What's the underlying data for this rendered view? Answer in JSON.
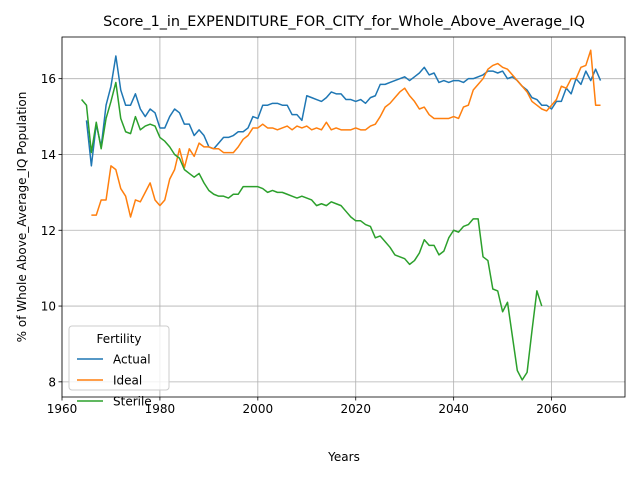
{
  "chart_data": {
    "type": "line",
    "title": "Score_1_in_EXPENDITURE_FOR_CITY_for_Whole_Above_Average_IQ",
    "xlabel": "Years",
    "ylabel": "% of Whole Above_Average_IQ Population",
    "xlim": [
      1960,
      2075
    ],
    "ylim": [
      7.6,
      17.1
    ],
    "x_ticks": [
      1960,
      1980,
      2000,
      2020,
      2040,
      2060
    ],
    "y_ticks": [
      8,
      10,
      12,
      14,
      16
    ],
    "grid": true,
    "legend": {
      "title": "Fertility",
      "placement": "bottom-left"
    },
    "series": [
      {
        "name": "Actual",
        "color": "#1f77b4",
        "points": [
          [
            1965,
            14.9
          ],
          [
            1966,
            13.7
          ],
          [
            1967,
            14.8
          ],
          [
            1968,
            14.2
          ],
          [
            1969,
            15.3
          ],
          [
            1970,
            15.8
          ],
          [
            1971,
            16.6
          ],
          [
            1972,
            15.7
          ],
          [
            1973,
            15.3
          ],
          [
            1974,
            15.3
          ],
          [
            1975,
            15.6
          ],
          [
            1976,
            15.2
          ],
          [
            1977,
            15.0
          ],
          [
            1978,
            15.2
          ],
          [
            1979,
            15.1
          ],
          [
            1980,
            14.7
          ],
          [
            1981,
            14.7
          ],
          [
            1982,
            15.0
          ],
          [
            1983,
            15.2
          ],
          [
            1984,
            15.1
          ],
          [
            1985,
            14.8
          ],
          [
            1986,
            14.8
          ],
          [
            1987,
            14.5
          ],
          [
            1988,
            14.65
          ],
          [
            1989,
            14.5
          ],
          [
            1990,
            14.2
          ],
          [
            1991,
            14.15
          ],
          [
            1992,
            14.3
          ],
          [
            1993,
            14.45
          ],
          [
            1994,
            14.45
          ],
          [
            1995,
            14.5
          ],
          [
            1996,
            14.6
          ],
          [
            1997,
            14.6
          ],
          [
            1998,
            14.7
          ],
          [
            1999,
            15.0
          ],
          [
            2000,
            14.95
          ],
          [
            2001,
            15.3
          ],
          [
            2002,
            15.3
          ],
          [
            2003,
            15.35
          ],
          [
            2004,
            15.35
          ],
          [
            2005,
            15.3
          ],
          [
            2006,
            15.3
          ],
          [
            2007,
            15.05
          ],
          [
            2008,
            15.05
          ],
          [
            2009,
            14.9
          ],
          [
            2010,
            15.55
          ],
          [
            2011,
            15.5
          ],
          [
            2012,
            15.45
          ],
          [
            2013,
            15.4
          ],
          [
            2014,
            15.5
          ],
          [
            2015,
            15.65
          ],
          [
            2016,
            15.6
          ],
          [
            2017,
            15.6
          ],
          [
            2018,
            15.45
          ],
          [
            2019,
            15.45
          ],
          [
            2020,
            15.4
          ],
          [
            2021,
            15.45
          ],
          [
            2022,
            15.35
          ],
          [
            2023,
            15.5
          ],
          [
            2024,
            15.55
          ],
          [
            2025,
            15.85
          ],
          [
            2026,
            15.85
          ],
          [
            2027,
            15.9
          ],
          [
            2028,
            15.95
          ],
          [
            2029,
            16.0
          ],
          [
            2030,
            16.05
          ],
          [
            2031,
            15.95
          ],
          [
            2032,
            16.05
          ],
          [
            2033,
            16.15
          ],
          [
            2034,
            16.3
          ],
          [
            2035,
            16.1
          ],
          [
            2036,
            16.15
          ],
          [
            2037,
            15.9
          ],
          [
            2038,
            15.95
          ],
          [
            2039,
            15.9
          ],
          [
            2040,
            15.95
          ],
          [
            2041,
            15.95
          ],
          [
            2042,
            15.9
          ],
          [
            2043,
            16.0
          ],
          [
            2044,
            16.0
          ],
          [
            2045,
            16.05
          ],
          [
            2046,
            16.1
          ],
          [
            2047,
            16.2
          ],
          [
            2048,
            16.2
          ],
          [
            2049,
            16.15
          ],
          [
            2050,
            16.2
          ],
          [
            2051,
            16.0
          ],
          [
            2052,
            16.05
          ],
          [
            2053,
            15.95
          ],
          [
            2054,
            15.8
          ],
          [
            2055,
            15.7
          ],
          [
            2056,
            15.5
          ],
          [
            2057,
            15.45
          ],
          [
            2058,
            15.3
          ],
          [
            2059,
            15.3
          ],
          [
            2060,
            15.2
          ],
          [
            2061,
            15.4
          ],
          [
            2062,
            15.4
          ],
          [
            2063,
            15.75
          ],
          [
            2064,
            15.6
          ],
          [
            2065,
            16.0
          ],
          [
            2066,
            15.85
          ],
          [
            2067,
            16.2
          ],
          [
            2068,
            15.95
          ],
          [
            2069,
            16.25
          ],
          [
            2070,
            15.95
          ]
        ]
      },
      {
        "name": "Ideal",
        "color": "#ff7f0e",
        "points": [
          [
            1966,
            12.4
          ],
          [
            1967,
            12.4
          ],
          [
            1968,
            12.8
          ],
          [
            1969,
            12.8
          ],
          [
            1970,
            13.7
          ],
          [
            1971,
            13.6
          ],
          [
            1972,
            13.1
          ],
          [
            1973,
            12.9
          ],
          [
            1974,
            12.35
          ],
          [
            1975,
            12.8
          ],
          [
            1976,
            12.75
          ],
          [
            1977,
            13.0
          ],
          [
            1978,
            13.25
          ],
          [
            1979,
            12.8
          ],
          [
            1980,
            12.65
          ],
          [
            1981,
            12.8
          ],
          [
            1982,
            13.35
          ],
          [
            1983,
            13.6
          ],
          [
            1984,
            14.15
          ],
          [
            1985,
            13.65
          ],
          [
            1986,
            14.15
          ],
          [
            1987,
            13.95
          ],
          [
            1988,
            14.3
          ],
          [
            1989,
            14.2
          ],
          [
            1990,
            14.2
          ],
          [
            1991,
            14.15
          ],
          [
            1992,
            14.15
          ],
          [
            1993,
            14.05
          ],
          [
            1994,
            14.05
          ],
          [
            1995,
            14.05
          ],
          [
            1996,
            14.2
          ],
          [
            1997,
            14.4
          ],
          [
            1998,
            14.5
          ],
          [
            1999,
            14.7
          ],
          [
            2000,
            14.7
          ],
          [
            2001,
            14.8
          ],
          [
            2002,
            14.7
          ],
          [
            2003,
            14.7
          ],
          [
            2004,
            14.65
          ],
          [
            2005,
            14.7
          ],
          [
            2006,
            14.75
          ],
          [
            2007,
            14.65
          ],
          [
            2008,
            14.75
          ],
          [
            2009,
            14.7
          ],
          [
            2010,
            14.75
          ],
          [
            2011,
            14.65
          ],
          [
            2012,
            14.7
          ],
          [
            2013,
            14.65
          ],
          [
            2014,
            14.85
          ],
          [
            2015,
            14.65
          ],
          [
            2016,
            14.7
          ],
          [
            2017,
            14.65
          ],
          [
            2018,
            14.65
          ],
          [
            2019,
            14.65
          ],
          [
            2020,
            14.7
          ],
          [
            2021,
            14.65
          ],
          [
            2022,
            14.65
          ],
          [
            2023,
            14.75
          ],
          [
            2024,
            14.8
          ],
          [
            2025,
            15.0
          ],
          [
            2026,
            15.25
          ],
          [
            2027,
            15.35
          ],
          [
            2028,
            15.5
          ],
          [
            2029,
            15.65
          ],
          [
            2030,
            15.75
          ],
          [
            2031,
            15.55
          ],
          [
            2032,
            15.4
          ],
          [
            2033,
            15.2
          ],
          [
            2034,
            15.25
          ],
          [
            2035,
            15.05
          ],
          [
            2036,
            14.95
          ],
          [
            2037,
            14.95
          ],
          [
            2038,
            14.95
          ],
          [
            2039,
            14.95
          ],
          [
            2040,
            15.0
          ],
          [
            2041,
            14.95
          ],
          [
            2042,
            15.25
          ],
          [
            2043,
            15.3
          ],
          [
            2044,
            15.7
          ],
          [
            2045,
            15.85
          ],
          [
            2046,
            16.0
          ],
          [
            2047,
            16.25
          ],
          [
            2048,
            16.35
          ],
          [
            2049,
            16.4
          ],
          [
            2050,
            16.3
          ],
          [
            2051,
            16.25
          ],
          [
            2052,
            16.1
          ],
          [
            2053,
            15.95
          ],
          [
            2054,
            15.8
          ],
          [
            2055,
            15.65
          ],
          [
            2056,
            15.4
          ],
          [
            2057,
            15.3
          ],
          [
            2058,
            15.2
          ],
          [
            2059,
            15.15
          ],
          [
            2060,
            15.3
          ],
          [
            2061,
            15.45
          ],
          [
            2062,
            15.8
          ],
          [
            2063,
            15.75
          ],
          [
            2064,
            16.0
          ],
          [
            2065,
            16.0
          ],
          [
            2066,
            16.3
          ],
          [
            2067,
            16.35
          ],
          [
            2068,
            16.75
          ],
          [
            2069,
            15.3
          ],
          [
            2070,
            15.3
          ]
        ]
      },
      {
        "name": "Sterile",
        "color": "#2ca02c",
        "points": [
          [
            1964,
            15.45
          ],
          [
            1965,
            15.3
          ],
          [
            1966,
            14.05
          ],
          [
            1967,
            14.85
          ],
          [
            1968,
            14.15
          ],
          [
            1969,
            14.95
          ],
          [
            1970,
            15.4
          ],
          [
            1971,
            15.9
          ],
          [
            1972,
            14.95
          ],
          [
            1973,
            14.6
          ],
          [
            1974,
            14.55
          ],
          [
            1975,
            15.0
          ],
          [
            1976,
            14.65
          ],
          [
            1977,
            14.75
          ],
          [
            1978,
            14.8
          ],
          [
            1979,
            14.75
          ],
          [
            1980,
            14.45
          ],
          [
            1981,
            14.35
          ],
          [
            1982,
            14.2
          ],
          [
            1983,
            14.0
          ],
          [
            1984,
            13.9
          ],
          [
            1985,
            13.6
          ],
          [
            1986,
            13.5
          ],
          [
            1987,
            13.4
          ],
          [
            1988,
            13.5
          ],
          [
            1989,
            13.25
          ],
          [
            1990,
            13.05
          ],
          [
            1991,
            12.95
          ],
          [
            1992,
            12.9
          ],
          [
            1993,
            12.9
          ],
          [
            1994,
            12.85
          ],
          [
            1995,
            12.95
          ],
          [
            1996,
            12.95
          ],
          [
            1997,
            13.15
          ],
          [
            1998,
            13.15
          ],
          [
            1999,
            13.15
          ],
          [
            2000,
            13.15
          ],
          [
            2001,
            13.1
          ],
          [
            2002,
            13.0
          ],
          [
            2003,
            13.05
          ],
          [
            2004,
            13.0
          ],
          [
            2005,
            13.0
          ],
          [
            2006,
            12.95
          ],
          [
            2007,
            12.9
          ],
          [
            2008,
            12.85
          ],
          [
            2009,
            12.9
          ],
          [
            2010,
            12.85
          ],
          [
            2011,
            12.8
          ],
          [
            2012,
            12.65
          ],
          [
            2013,
            12.7
          ],
          [
            2014,
            12.65
          ],
          [
            2015,
            12.75
          ],
          [
            2016,
            12.7
          ],
          [
            2017,
            12.65
          ],
          [
            2018,
            12.5
          ],
          [
            2019,
            12.35
          ],
          [
            2020,
            12.25
          ],
          [
            2021,
            12.25
          ],
          [
            2022,
            12.15
          ],
          [
            2023,
            12.1
          ],
          [
            2024,
            11.8
          ],
          [
            2025,
            11.85
          ],
          [
            2026,
            11.7
          ],
          [
            2027,
            11.55
          ],
          [
            2028,
            11.35
          ],
          [
            2029,
            11.3
          ],
          [
            2030,
            11.25
          ],
          [
            2031,
            11.1
          ],
          [
            2032,
            11.2
          ],
          [
            2033,
            11.4
          ],
          [
            2034,
            11.75
          ],
          [
            2035,
            11.6
          ],
          [
            2036,
            11.6
          ],
          [
            2037,
            11.35
          ],
          [
            2038,
            11.45
          ],
          [
            2039,
            11.8
          ],
          [
            2040,
            12.0
          ],
          [
            2041,
            11.95
          ],
          [
            2042,
            12.1
          ],
          [
            2043,
            12.15
          ],
          [
            2044,
            12.3
          ],
          [
            2045,
            12.3
          ],
          [
            2046,
            11.3
          ],
          [
            2047,
            11.2
          ],
          [
            2048,
            10.45
          ],
          [
            2049,
            10.4
          ],
          [
            2050,
            9.85
          ],
          [
            2051,
            10.1
          ],
          [
            2052,
            9.2
          ],
          [
            2053,
            8.3
          ],
          [
            2054,
            8.05
          ],
          [
            2055,
            8.25
          ],
          [
            2056,
            9.35
          ],
          [
            2057,
            10.4
          ],
          [
            2058,
            10.0
          ]
        ]
      }
    ]
  }
}
